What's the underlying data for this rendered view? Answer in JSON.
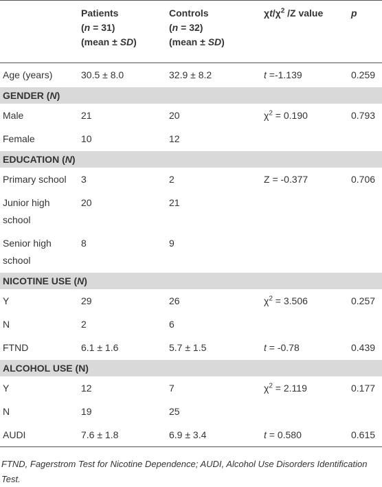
{
  "table": {
    "header": [
      [
        "Patients",
        "(",
        "n",
        " = 31)",
        "(mean ± ",
        "SD",
        ")"
      ],
      [
        "Controls",
        "(",
        "n",
        " = 32)",
        "(mean ± ",
        "SD",
        ")"
      ],
      [
        "χ",
        "t",
        "/χ",
        "2",
        " /Z value"
      ],
      [
        "p"
      ]
    ],
    "rows": [
      {
        "label": "Age (years)",
        "patients": "30.5 ± 8.0",
        "controls": "32.9 ± 8.2",
        "stat": [
          "t",
          " =-1.139"
        ],
        "p": "0.259"
      },
      {
        "section": [
          "GENDER (",
          "N",
          ")"
        ]
      },
      {
        "label": "Male",
        "patients": "21",
        "controls": "20",
        "stat": [
          "χ",
          "2",
          " = 0.190"
        ],
        "p": "0.793"
      },
      {
        "label": "Female",
        "patients": "10",
        "controls": "12"
      },
      {
        "section": [
          "EDUCATION (",
          "N",
          ")"
        ]
      },
      {
        "label": "Primary school",
        "patients": "3",
        "controls": "2",
        "stat": [
          "Z = -0.377"
        ],
        "p": "0.706"
      },
      {
        "label": "Junior high school",
        "patients": "20",
        "controls": "21"
      },
      {
        "label": "Senior high school",
        "patients": "8",
        "controls": "9"
      },
      {
        "section": [
          "NICOTINE USE (",
          "N",
          ")"
        ]
      },
      {
        "label": "Y",
        "patients": "29",
        "controls": "26",
        "stat": [
          "χ",
          "2",
          " = 3.506"
        ],
        "p": "0.257"
      },
      {
        "label": "N",
        "patients": "2",
        "controls": "6"
      },
      {
        "label": "FTND",
        "patients": "6.1 ± 1.6",
        "controls": "5.7 ± 1.5",
        "stat": [
          "t",
          " = -0.78"
        ],
        "p": "0.439"
      },
      {
        "section": [
          "ALCOHOL USE (N)"
        ]
      },
      {
        "label": "Y",
        "patients": "12",
        "controls": "7",
        "stat": [
          "χ",
          "2",
          " = 2.119"
        ],
        "p": "0.177"
      },
      {
        "label": "N",
        "patients": "19",
        "controls": "25"
      },
      {
        "label": "AUDI",
        "patients": "7.6 ± 1.8",
        "controls": "6.9 ± 3.4",
        "stat": [
          "t",
          " = 0.580"
        ],
        "p": "0.615"
      }
    ]
  },
  "footnote": "FTND, Fagerstrom Test for Nicotine Dependence; AUDI, Alcohol Use Disorders Identification Test."
}
